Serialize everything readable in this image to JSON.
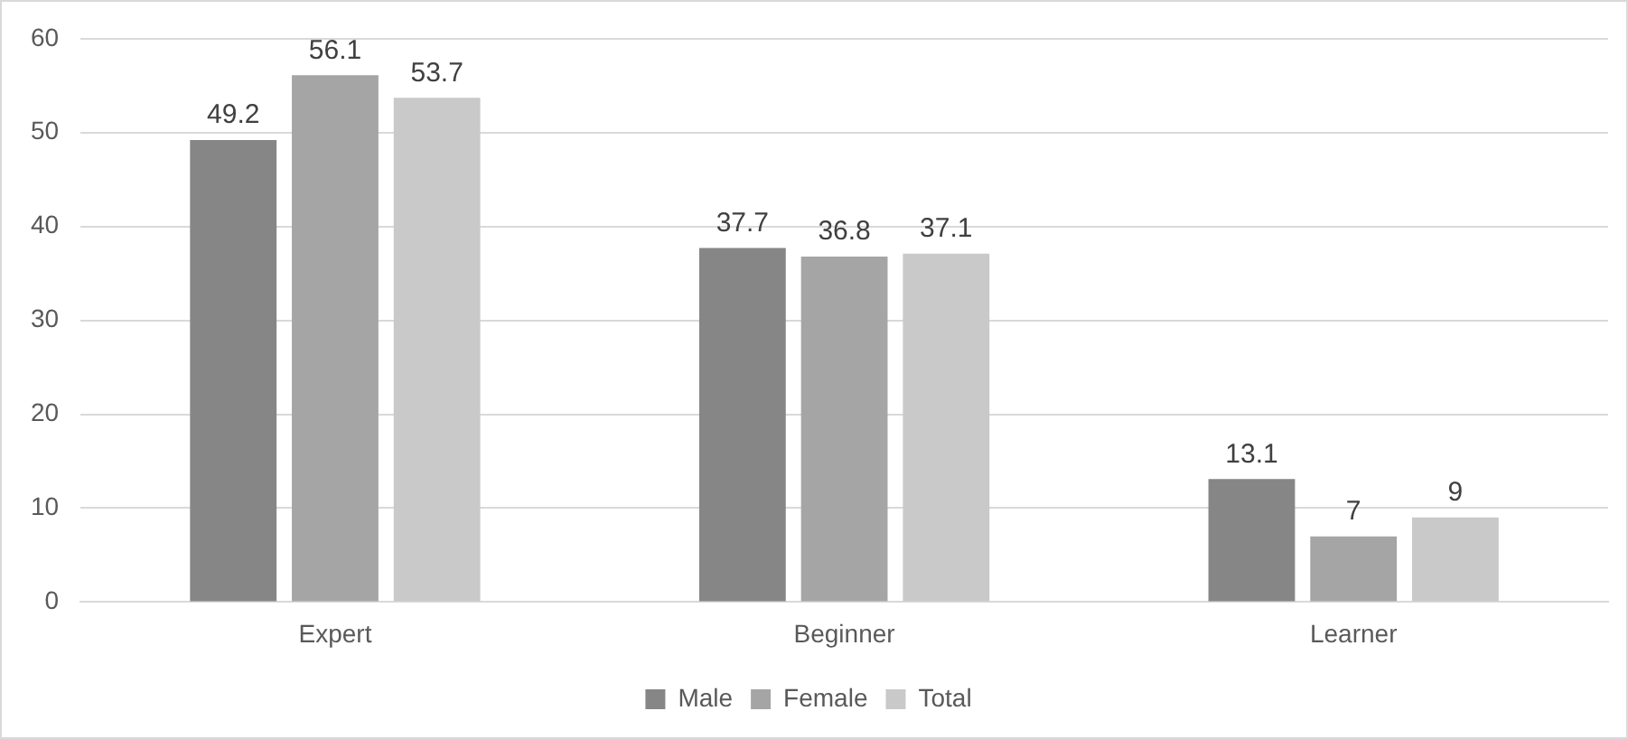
{
  "chart_data": {
    "type": "bar",
    "categories": [
      "Expert",
      "Beginner",
      "Learner"
    ],
    "series": [
      {
        "name": "Male",
        "color": "#868686",
        "values": [
          49.2,
          37.7,
          13.1
        ]
      },
      {
        "name": "Female",
        "color": "#a5a5a5",
        "values": [
          56.1,
          36.8,
          7
        ]
      },
      {
        "name": "Total",
        "color": "#c9c9c9",
        "values": [
          53.7,
          37.1,
          9
        ]
      }
    ],
    "ylim": [
      0,
      60
    ],
    "yticks": [
      0,
      10,
      20,
      30,
      40,
      50,
      60
    ],
    "grid": "y",
    "legend": "bottom",
    "data_labels": true
  }
}
